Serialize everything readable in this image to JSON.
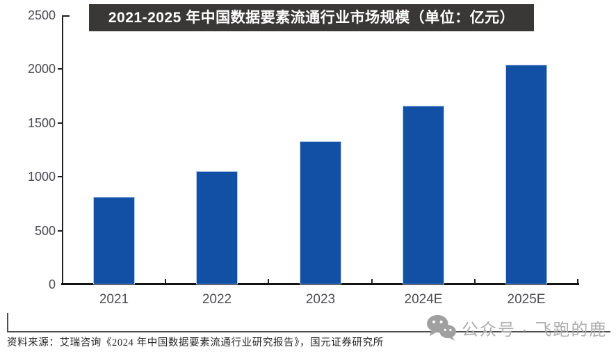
{
  "title": {
    "text": "2021-2025 年中国数据要素流通行业市场规模（单位：亿元）",
    "bg_color": "#3a3737",
    "text_color": "#ffffff"
  },
  "chart_data": {
    "type": "bar",
    "title": "2021-2025 年中国数据要素流通行业市场规模（单位：亿元）",
    "unit": "亿元",
    "categories": [
      "2021",
      "2022",
      "2023",
      "2024E",
      "2025E"
    ],
    "values": [
      815,
      1050,
      1330,
      1660,
      2040
    ],
    "xlabel": "",
    "ylabel": "",
    "ylim": [
      0,
      2500
    ],
    "yticks": [
      0,
      500,
      1000,
      1500,
      2000,
      2500
    ],
    "grid": false,
    "legend": "none",
    "bar_color": "#1150a5",
    "bar_border_color": "#b7cce9",
    "axis_color": "#1f1f1f",
    "tick_label_color": "#4c4c52"
  },
  "footer": {
    "source_text": "资料来源：艾瑞咨询《2024 年中国数据要素流通行业研究报告》，国元证券研究所"
  },
  "watermark": {
    "icon": "wechat-icon",
    "text": "公众号 · 飞跑的鹿",
    "color": "#aeaeae"
  }
}
